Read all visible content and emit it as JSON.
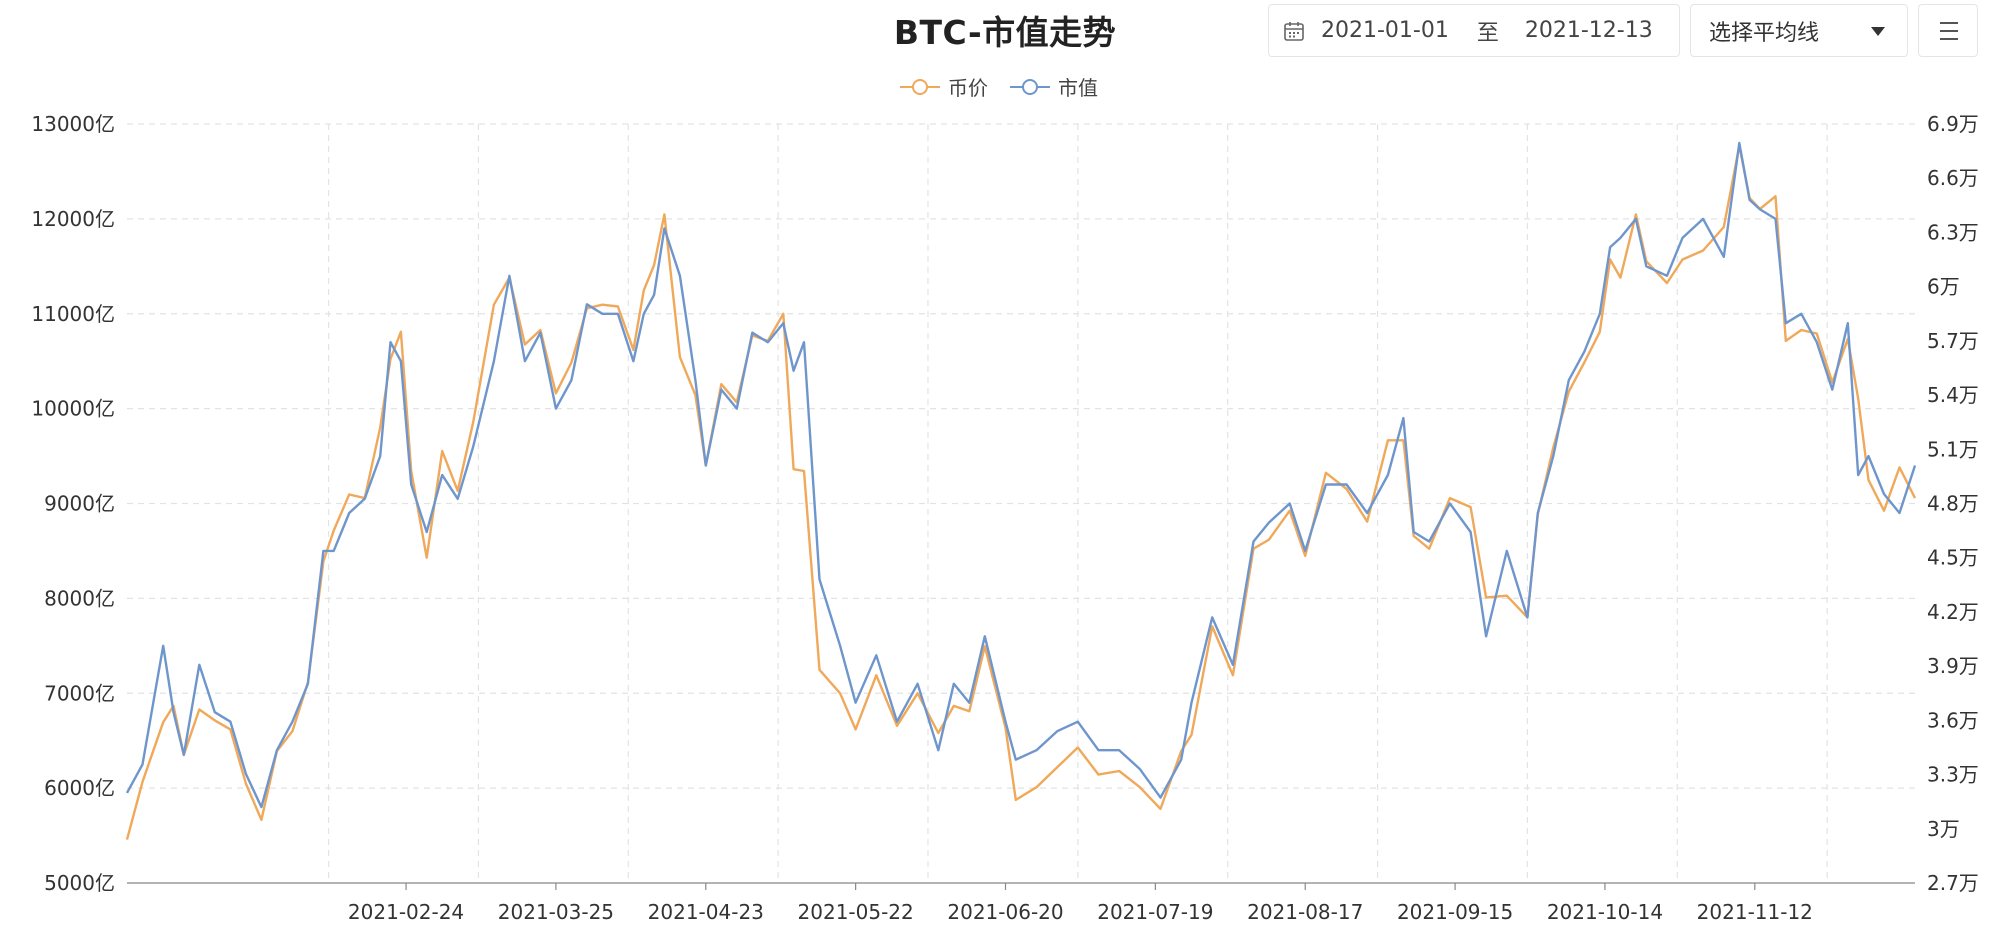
{
  "header": {
    "title": "BTC-市值走势",
    "date_start": "2021-01-01",
    "date_sep": "至",
    "date_end": "2021-12-13",
    "select_label": "选择平均线"
  },
  "icons": {
    "calendar": "calendar-icon",
    "caret": "caret-down-icon",
    "menu": "menu-icon"
  },
  "chart_data": {
    "type": "line",
    "x_start": "2021-01-01",
    "x_end": "2021-12-13",
    "x_ticks": [
      "2021-02-24",
      "2021-03-25",
      "2021-04-23",
      "2021-05-22",
      "2021-06-20",
      "2021-07-19",
      "2021-08-17",
      "2021-09-15",
      "2021-10-14",
      "2021-11-12"
    ],
    "y_left": {
      "ticks": [
        "5000亿",
        "6000亿",
        "7000亿",
        "8000亿",
        "9000亿",
        "10000亿",
        "11000亿",
        "12000亿",
        "13000亿"
      ],
      "min": 5000,
      "max": 13000
    },
    "y_right": {
      "ticks": [
        "2.7万",
        "3万",
        "3.3万",
        "3.6万",
        "3.9万",
        "4.2万",
        "4.5万",
        "4.8万",
        "5.1万",
        "5.4万",
        "5.7万",
        "6万",
        "6.3万",
        "6.6万",
        "6.9万"
      ],
      "min": 27000,
      "max": 69000
    },
    "grid": true,
    "legend": "top-center",
    "series": [
      {
        "name": "币价",
        "axis": "right",
        "color": "#f0a85a",
        "x": [
          "2021-01-01",
          "2021-01-04",
          "2021-01-08",
          "2021-01-10",
          "2021-01-12",
          "2021-01-15",
          "2021-01-18",
          "2021-01-21",
          "2021-01-24",
          "2021-01-27",
          "2021-01-30",
          "2021-02-02",
          "2021-02-05",
          "2021-02-08",
          "2021-02-10",
          "2021-02-13",
          "2021-02-16",
          "2021-02-19",
          "2021-02-21",
          "2021-02-23",
          "2021-02-25",
          "2021-02-28",
          "2021-03-03",
          "2021-03-06",
          "2021-03-09",
          "2021-03-13",
          "2021-03-16",
          "2021-03-19",
          "2021-03-22",
          "2021-03-25",
          "2021-03-28",
          "2021-03-31",
          "2021-04-03",
          "2021-04-06",
          "2021-04-09",
          "2021-04-11",
          "2021-04-13",
          "2021-04-15",
          "2021-04-18",
          "2021-04-21",
          "2021-04-23",
          "2021-04-26",
          "2021-04-29",
          "2021-05-02",
          "2021-05-05",
          "2021-05-08",
          "2021-05-10",
          "2021-05-12",
          "2021-05-15",
          "2021-05-19",
          "2021-05-22",
          "2021-05-26",
          "2021-05-30",
          "2021-06-03",
          "2021-06-07",
          "2021-06-10",
          "2021-06-13",
          "2021-06-16",
          "2021-06-20",
          "2021-06-22",
          "2021-06-26",
          "2021-06-30",
          "2021-07-04",
          "2021-07-08",
          "2021-07-12",
          "2021-07-16",
          "2021-07-20",
          "2021-07-24",
          "2021-07-26",
          "2021-07-30",
          "2021-08-03",
          "2021-08-07",
          "2021-08-10",
          "2021-08-14",
          "2021-08-17",
          "2021-08-21",
          "2021-08-25",
          "2021-08-29",
          "2021-09-02",
          "2021-09-05",
          "2021-09-07",
          "2021-09-10",
          "2021-09-14",
          "2021-09-18",
          "2021-09-21",
          "2021-09-25",
          "2021-09-29",
          "2021-10-01",
          "2021-10-04",
          "2021-10-07",
          "2021-10-10",
          "2021-10-13",
          "2021-10-15",
          "2021-10-17",
          "2021-10-20",
          "2021-10-22",
          "2021-10-26",
          "2021-10-29",
          "2021-11-02",
          "2021-11-06",
          "2021-11-09",
          "2021-11-11",
          "2021-11-13",
          "2021-11-16",
          "2021-11-18",
          "2021-11-21",
          "2021-11-24",
          "2021-11-27",
          "2021-11-30",
          "2021-12-02",
          "2021-12-04",
          "2021-12-07",
          "2021-12-10",
          "2021-12-13"
        ],
        "y": [
          29400,
          32600,
          35900,
          36800,
          34100,
          36600,
          36000,
          35500,
          32500,
          30500,
          34300,
          35400,
          38100,
          44800,
          46500,
          48500,
          48300,
          52200,
          56000,
          57500,
          49800,
          45000,
          50900,
          48700,
          52500,
          59000,
          60500,
          56800,
          57600,
          54100,
          55800,
          58800,
          59000,
          58900,
          56500,
          59800,
          61200,
          64000,
          56100,
          54000,
          50100,
          54600,
          53600,
          57300,
          57000,
          58500,
          49900,
          49800,
          38800,
          37500,
          35500,
          38500,
          35700,
          37500,
          35300,
          36800,
          36500,
          40100,
          35600,
          31600,
          32300,
          33400,
          34500,
          33000,
          33200,
          32300,
          31100,
          34300,
          35200,
          41200,
          38500,
          45500,
          46000,
          47600,
          45100,
          49700,
          48800,
          47000,
          51500,
          51500,
          46200,
          45500,
          48300,
          47800,
          42800,
          42900,
          41700,
          47400,
          51100,
          54200,
          55800,
          57500,
          61500,
          60500,
          64000,
          61400,
          60200,
          61500,
          62000,
          63300,
          67800,
          64900,
          64300,
          65000,
          57000,
          57600,
          57400,
          54700,
          57100,
          53800,
          49300,
          47600,
          50000,
          48300
        ]
      },
      {
        "name": "市值",
        "axis": "left",
        "color": "#6e96cc",
        "x": [
          "2021-01-01",
          "2021-01-04",
          "2021-01-08",
          "2021-01-10",
          "2021-01-12",
          "2021-01-15",
          "2021-01-18",
          "2021-01-21",
          "2021-01-24",
          "2021-01-27",
          "2021-01-30",
          "2021-02-02",
          "2021-02-05",
          "2021-02-08",
          "2021-02-10",
          "2021-02-13",
          "2021-02-16",
          "2021-02-19",
          "2021-02-21",
          "2021-02-23",
          "2021-02-25",
          "2021-02-28",
          "2021-03-03",
          "2021-03-06",
          "2021-03-09",
          "2021-03-13",
          "2021-03-16",
          "2021-03-19",
          "2021-03-22",
          "2021-03-25",
          "2021-03-28",
          "2021-03-31",
          "2021-04-03",
          "2021-04-06",
          "2021-04-09",
          "2021-04-11",
          "2021-04-13",
          "2021-04-15",
          "2021-04-18",
          "2021-04-21",
          "2021-04-23",
          "2021-04-26",
          "2021-04-29",
          "2021-05-02",
          "2021-05-05",
          "2021-05-08",
          "2021-05-10",
          "2021-05-12",
          "2021-05-15",
          "2021-05-19",
          "2021-05-22",
          "2021-05-26",
          "2021-05-30",
          "2021-06-03",
          "2021-06-07",
          "2021-06-10",
          "2021-06-13",
          "2021-06-16",
          "2021-06-20",
          "2021-06-22",
          "2021-06-26",
          "2021-06-30",
          "2021-07-04",
          "2021-07-08",
          "2021-07-12",
          "2021-07-16",
          "2021-07-20",
          "2021-07-24",
          "2021-07-26",
          "2021-07-30",
          "2021-08-03",
          "2021-08-07",
          "2021-08-10",
          "2021-08-14",
          "2021-08-17",
          "2021-08-21",
          "2021-08-25",
          "2021-08-29",
          "2021-09-02",
          "2021-09-05",
          "2021-09-07",
          "2021-09-10",
          "2021-09-14",
          "2021-09-18",
          "2021-09-21",
          "2021-09-25",
          "2021-09-29",
          "2021-10-01",
          "2021-10-04",
          "2021-10-07",
          "2021-10-10",
          "2021-10-13",
          "2021-10-15",
          "2021-10-17",
          "2021-10-20",
          "2021-10-22",
          "2021-10-26",
          "2021-10-29",
          "2021-11-02",
          "2021-11-06",
          "2021-11-09",
          "2021-11-11",
          "2021-11-13",
          "2021-11-16",
          "2021-11-18",
          "2021-11-21",
          "2021-11-24",
          "2021-11-27",
          "2021-11-30",
          "2021-12-02",
          "2021-12-04",
          "2021-12-07",
          "2021-12-10",
          "2021-12-13"
        ],
        "y": [
          5950,
          6250,
          7500,
          6800,
          6350,
          7300,
          6800,
          6700,
          6150,
          5800,
          6400,
          6700,
          7100,
          8500,
          8500,
          8900,
          9050,
          9500,
          10700,
          10500,
          9200,
          8700,
          9300,
          9050,
          9600,
          10500,
          11400,
          10500,
          10800,
          10000,
          10300,
          11100,
          11000,
          11000,
          10500,
          11000,
          11200,
          11900,
          11400,
          10300,
          9400,
          10200,
          10000,
          10800,
          10700,
          10900,
          10400,
          10700,
          8200,
          7500,
          6900,
          7400,
          6700,
          7100,
          6400,
          7100,
          6900,
          7600,
          6700,
          6300,
          6400,
          6600,
          6700,
          6400,
          6400,
          6200,
          5900,
          6300,
          6900,
          7800,
          7300,
          8600,
          8800,
          9000,
          8500,
          9200,
          9200,
          8900,
          9300,
          9900,
          8700,
          8600,
          9000,
          8700,
          7600,
          8500,
          7800,
          8900,
          9500,
          10300,
          10600,
          11000,
          11700,
          11800,
          12000,
          11500,
          11400,
          11800,
          12000,
          11600,
          12800,
          12200,
          12100,
          12000,
          10900,
          11000,
          10700,
          10200,
          10900,
          9300,
          9500,
          9100,
          8900,
          9400
        ]
      }
    ]
  }
}
